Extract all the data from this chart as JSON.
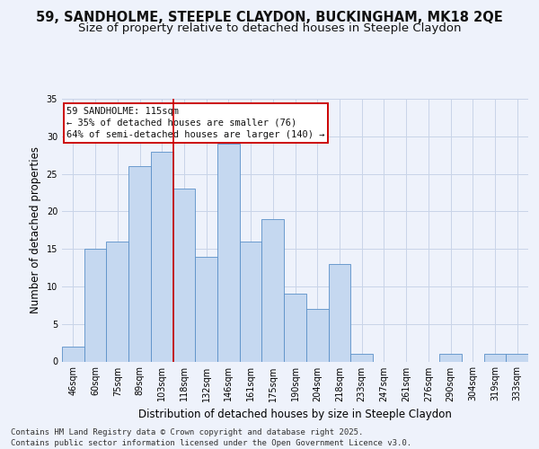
{
  "title_line1": "59, SANDHOLME, STEEPLE CLAYDON, BUCKINGHAM, MK18 2QE",
  "title_line2": "Size of property relative to detached houses in Steeple Claydon",
  "xlabel": "Distribution of detached houses by size in Steeple Claydon",
  "ylabel": "Number of detached properties",
  "categories": [
    "46sqm",
    "60sqm",
    "75sqm",
    "89sqm",
    "103sqm",
    "118sqm",
    "132sqm",
    "146sqm",
    "161sqm",
    "175sqm",
    "190sqm",
    "204sqm",
    "218sqm",
    "233sqm",
    "247sqm",
    "261sqm",
    "276sqm",
    "290sqm",
    "304sqm",
    "319sqm",
    "333sqm"
  ],
  "values": [
    2,
    15,
    16,
    26,
    28,
    23,
    14,
    29,
    16,
    19,
    9,
    7,
    13,
    1,
    0,
    0,
    0,
    1,
    0,
    1,
    1
  ],
  "bar_color": "#c5d8f0",
  "bar_edge_color": "#5a90c8",
  "vline_x_index": 4.5,
  "vline_color": "#cc0000",
  "annotation_text": "59 SANDHOLME: 115sqm\n← 35% of detached houses are smaller (76)\n64% of semi-detached houses are larger (140) →",
  "annotation_box_color": "#cc0000",
  "ylim": [
    0,
    35
  ],
  "yticks": [
    0,
    5,
    10,
    15,
    20,
    25,
    30,
    35
  ],
  "footer_text": "Contains HM Land Registry data © Crown copyright and database right 2025.\nContains public sector information licensed under the Open Government Licence v3.0.",
  "bg_color": "#eef2fb",
  "grid_color": "#c8d4e8",
  "title_fontsize": 10.5,
  "subtitle_fontsize": 9.5,
  "axis_label_fontsize": 8.5,
  "tick_fontsize": 7,
  "footer_fontsize": 6.5,
  "annotation_fontsize": 7.5
}
